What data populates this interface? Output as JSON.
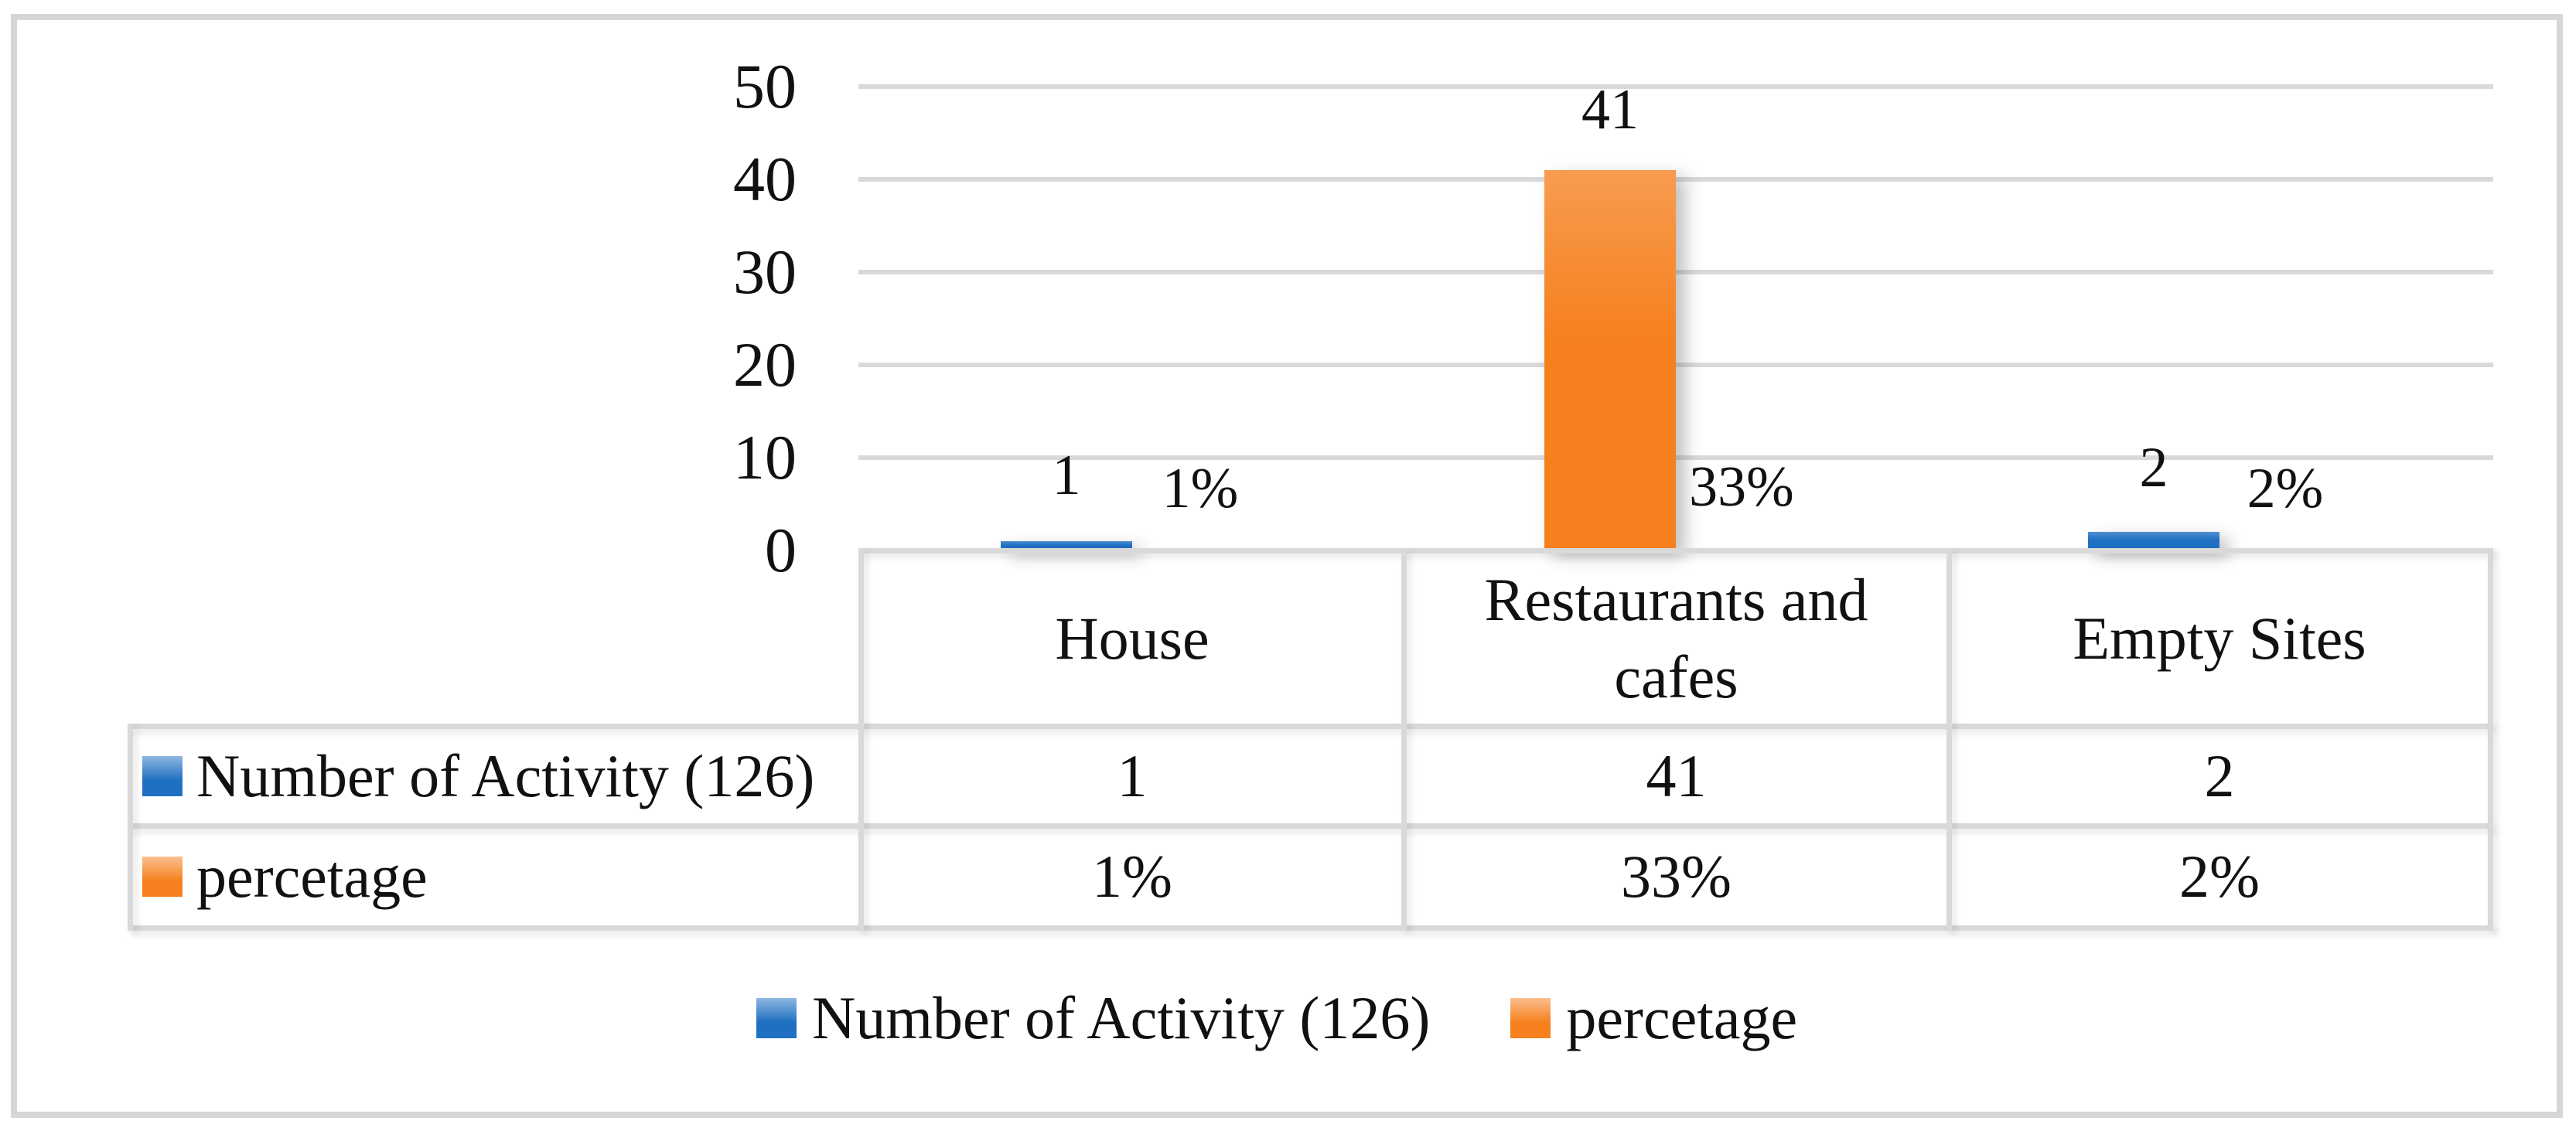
{
  "chart_data": {
    "type": "bar",
    "title": "",
    "categories": [
      "House",
      "Restaurants and cafes",
      "Empty Sites"
    ],
    "series": [
      {
        "name": "Number of Activity (126)",
        "color": "#1F70C2",
        "values": [
          1,
          41,
          2
        ],
        "data_labels": [
          "1",
          "41",
          "2"
        ]
      },
      {
        "name": "percetage",
        "color": "#F6801E",
        "values": [
          1,
          33,
          2
        ],
        "data_labels": [
          "1%",
          "33%",
          "2%"
        ]
      }
    ],
    "rendered_bars": [
      {
        "category": "House",
        "value": 1,
        "color": "#1F70C2"
      },
      {
        "category": "Restaurants and cafes",
        "value": 41,
        "color": "#F6801E"
      },
      {
        "category": "Empty Sites",
        "value": 2,
        "color": "#1F70C2"
      }
    ],
    "ylim": [
      0,
      50
    ],
    "yticks_top_to_bottom": [
      "50",
      "40",
      "30",
      "20",
      "10",
      "0"
    ],
    "grid": true,
    "gridline_color": "#D9D9D9",
    "legend_position": "bottom",
    "data_table_shown": true
  },
  "table": {
    "columns": [
      "House",
      "Restaurants and cafes",
      "Empty Sites"
    ],
    "rows": [
      {
        "label": "Number of Activity (126)",
        "key_color": "#1F70C2",
        "values": [
          "1",
          "41",
          "2"
        ]
      },
      {
        "label": "percetage",
        "key_color": "#F6801E",
        "values": [
          "1%",
          "33%",
          "2%"
        ]
      }
    ]
  },
  "legend": {
    "items": [
      {
        "label": "Number of Activity (126)",
        "color": "#1F70C2"
      },
      {
        "label": "percetage",
        "color": "#F6801E"
      }
    ]
  }
}
